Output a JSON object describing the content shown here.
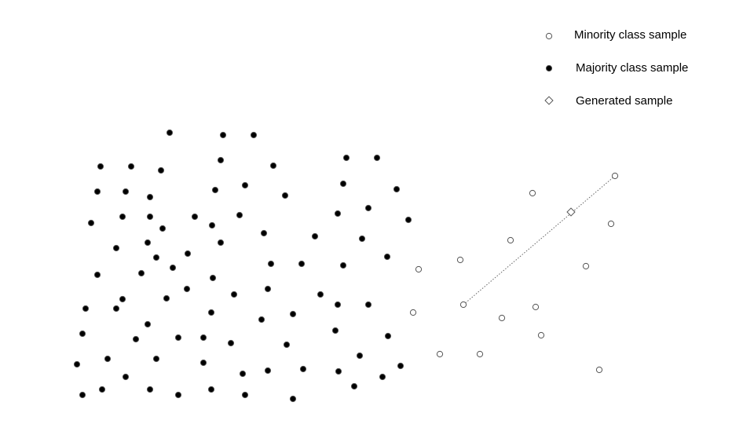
{
  "legend": {
    "minority_label": "Minority class sample",
    "majority_label": "Majority class sample",
    "generated_label": "Generated sample"
  },
  "colors": {
    "majority_fill": "#000000",
    "minority_fill": "#ffffff",
    "stroke": "#555555",
    "line": "#666666"
  },
  "majority_points": [
    [
      216,
      169
    ],
    [
      284,
      172
    ],
    [
      323,
      172
    ],
    [
      128,
      212
    ],
    [
      167,
      212
    ],
    [
      205,
      217
    ],
    [
      281,
      204
    ],
    [
      348,
      211
    ],
    [
      441,
      201
    ],
    [
      480,
      201
    ],
    [
      124,
      244
    ],
    [
      160,
      244
    ],
    [
      191,
      251
    ],
    [
      274,
      242
    ],
    [
      312,
      236
    ],
    [
      363,
      249
    ],
    [
      437,
      234
    ],
    [
      505,
      241
    ],
    [
      116,
      284
    ],
    [
      156,
      276
    ],
    [
      191,
      276
    ],
    [
      207,
      291
    ],
    [
      248,
      276
    ],
    [
      270,
      287
    ],
    [
      305,
      274
    ],
    [
      430,
      272
    ],
    [
      469,
      265
    ],
    [
      520,
      280
    ],
    [
      148,
      316
    ],
    [
      188,
      309
    ],
    [
      239,
      323
    ],
    [
      281,
      309
    ],
    [
      336,
      297
    ],
    [
      401,
      301
    ],
    [
      461,
      304
    ],
    [
      124,
      350
    ],
    [
      180,
      348
    ],
    [
      199,
      328
    ],
    [
      220,
      341
    ],
    [
      271,
      354
    ],
    [
      345,
      336
    ],
    [
      384,
      336
    ],
    [
      437,
      338
    ],
    [
      493,
      327
    ],
    [
      109,
      393
    ],
    [
      148,
      393
    ],
    [
      156,
      381
    ],
    [
      212,
      380
    ],
    [
      238,
      368
    ],
    [
      298,
      375
    ],
    [
      341,
      368
    ],
    [
      408,
      375
    ],
    [
      430,
      388
    ],
    [
      469,
      388
    ],
    [
      105,
      425
    ],
    [
      173,
      432
    ],
    [
      188,
      413
    ],
    [
      227,
      430
    ],
    [
      259,
      430
    ],
    [
      269,
      398
    ],
    [
      294,
      437
    ],
    [
      333,
      407
    ],
    [
      373,
      400
    ],
    [
      427,
      421
    ],
    [
      494,
      428
    ],
    [
      98,
      464
    ],
    [
      137,
      457
    ],
    [
      160,
      480
    ],
    [
      199,
      457
    ],
    [
      259,
      462
    ],
    [
      309,
      476
    ],
    [
      341,
      472
    ],
    [
      365,
      439
    ],
    [
      386,
      470
    ],
    [
      431,
      473
    ],
    [
      458,
      453
    ],
    [
      510,
      466
    ],
    [
      105,
      503
    ],
    [
      130,
      496
    ],
    [
      191,
      496
    ],
    [
      227,
      503
    ],
    [
      269,
      496
    ],
    [
      312,
      503
    ],
    [
      373,
      508
    ],
    [
      451,
      492
    ],
    [
      487,
      480
    ]
  ],
  "minority_points": [
    [
      533,
      343
    ],
    [
      586,
      331
    ],
    [
      526,
      398
    ],
    [
      590,
      388
    ],
    [
      560,
      451
    ],
    [
      611,
      451
    ],
    [
      639,
      405
    ],
    [
      650,
      306
    ],
    [
      678,
      246
    ],
    [
      682,
      391
    ],
    [
      689,
      427
    ],
    [
      746,
      339
    ],
    [
      778,
      285
    ],
    [
      783,
      224
    ],
    [
      763,
      471
    ]
  ],
  "generated_point": [
    727,
    270
  ],
  "interpolation_line": {
    "from": [
      590,
      388
    ],
    "to": [
      783,
      224
    ]
  }
}
